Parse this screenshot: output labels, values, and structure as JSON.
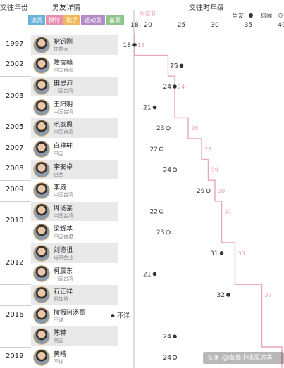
{
  "header": {
    "year_col": "交往年份",
    "bf_col": "男友详情",
    "age_col": "交往时年龄"
  },
  "categories": [
    {
      "label": "演员",
      "color": "#67b3d6"
    },
    {
      "label": "模特",
      "color": "#e98fb0"
    },
    {
      "label": "歌手",
      "color": "#f0b85a"
    },
    {
      "label": "运动员",
      "color": "#b58ac9"
    },
    {
      "label": "富豪",
      "color": "#8cc48a"
    }
  ],
  "legend": {
    "subject": "周笙轩",
    "boyfriend": "男友",
    "rumor": "绯闻"
  },
  "year_labels": [
    {
      "label": "1997",
      "row": 0
    },
    {
      "label": "2002",
      "row": 1
    },
    {
      "label": "2003",
      "row": 2.5
    },
    {
      "label": "2005",
      "row": 4
    },
    {
      "label": "2007",
      "row": 5
    },
    {
      "label": "2008",
      "row": 6
    },
    {
      "label": "2009",
      "row": 7
    },
    {
      "label": "2010",
      "row": 8.5
    },
    {
      "label": "2012",
      "row": 10.5
    },
    {
      "label": "2016",
      "row": 13
    },
    {
      "label": "2019",
      "row": 15
    }
  ],
  "rows": [
    {
      "name": "祝钒刚",
      "region": "加拿大",
      "shade": true
    },
    {
      "name": "隆宸翰",
      "region": "中国台湾",
      "shade": false
    },
    {
      "name": "田思沛",
      "region": "中国台湾",
      "shade": true
    },
    {
      "name": "王阳明",
      "region": "中国台湾",
      "shade": false
    },
    {
      "name": "毛家恩",
      "region": "中国台湾",
      "shade": true
    },
    {
      "name": "白梓轩",
      "region": "中国",
      "shade": false
    },
    {
      "name": "李安卓",
      "region": "巴西",
      "shade": true
    },
    {
      "name": "李威",
      "region": "中国台湾",
      "shade": false
    },
    {
      "name": "周汤豪",
      "region": "中国台湾",
      "shade": true
    },
    {
      "name": "梁耀基",
      "region": "中国香港",
      "shade": false
    },
    {
      "name": "刘德祖",
      "region": "马来西亚",
      "shade": true
    },
    {
      "name": "柯震东",
      "region": "中国台湾",
      "shade": false
    },
    {
      "name": "石正祥",
      "region": "新加坡",
      "shade": true
    },
    {
      "name": "撒贩阿汤哥",
      "region": "不详",
      "shade": false
    },
    {
      "name": "陈粹",
      "region": "美国",
      "shade": true
    },
    {
      "name": "黄皓",
      "region": "不详",
      "shade": false
    }
  ],
  "watermark": "头条 @嗡嗡小咪很厉害",
  "chart_data": {
    "type": "scatter",
    "xlim": [
      18,
      40
    ],
    "x_ticks": [
      18,
      20,
      25,
      30,
      35,
      40
    ],
    "x_tick_labels": [
      "18",
      "20",
      "25",
      "30",
      "35",
      "40"
    ],
    "subject_age": [
      18,
      23,
      24,
      24,
      26,
      28,
      29,
      30,
      31,
      31,
      33,
      33,
      37,
      37,
      37,
      40
    ],
    "subject_age_labels": [
      "18",
      "23",
      "24",
      "",
      "26",
      "28",
      "29",
      "30",
      "31",
      "",
      "33",
      "",
      "37",
      "",
      "",
      "40"
    ],
    "boyfriend_age": [
      18,
      25,
      24,
      21,
      23,
      22,
      24,
      29,
      22,
      23,
      31,
      21,
      32,
      null,
      24,
      24
    ],
    "boyfriend_type": [
      "dot",
      "dot",
      "dot",
      "dot",
      "ring",
      "ring",
      "ring",
      "ring",
      "ring",
      "ring",
      "dot",
      "dot",
      "dot",
      null,
      "dot",
      "ring"
    ],
    "boyfriend_labels": [
      "18",
      "25",
      "24",
      "21",
      "23",
      "22",
      "24",
      "29",
      "22",
      "23",
      "31",
      "21",
      "32",
      "",
      "24",
      "24"
    ],
    "unknown_row": 13,
    "unknown_label": "不详"
  }
}
